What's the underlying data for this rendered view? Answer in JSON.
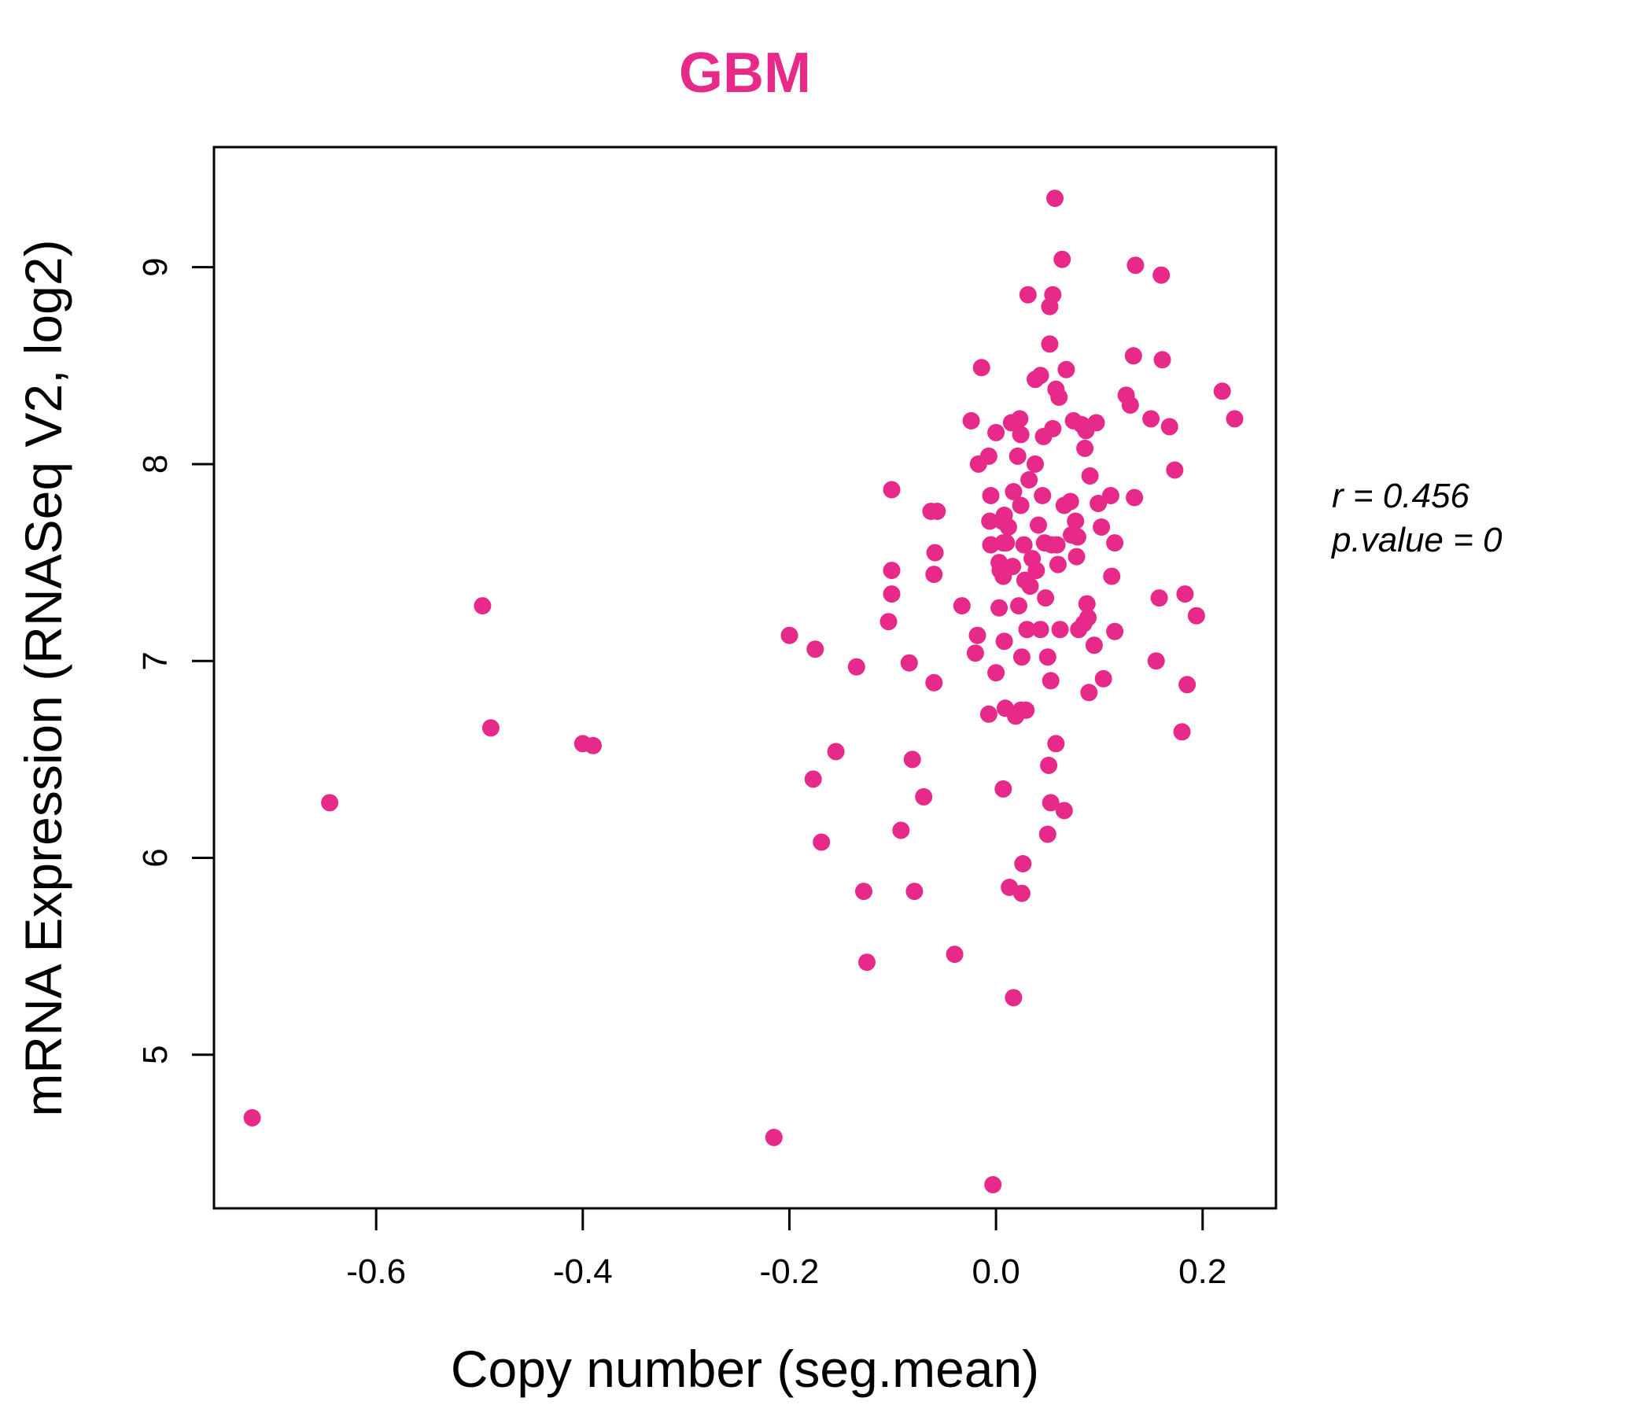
{
  "chart_data": {
    "type": "scatter",
    "title": "GBM",
    "xlabel": "Copy number (seg.mean)",
    "ylabel": "mRNA Expression (RNASeq V2, log2)",
    "xlim": [
      -0.757,
      0.271
    ],
    "ylim": [
      4.22,
      9.61
    ],
    "xticks": [
      -0.6,
      -0.4,
      -0.2,
      0.0,
      0.2
    ],
    "xtick_labels": [
      "-0.6",
      "-0.4",
      "-0.2",
      "0.0",
      "0.2"
    ],
    "yticks": [
      5,
      6,
      7,
      8,
      9
    ],
    "ytick_labels": [
      "5",
      "6",
      "7",
      "8",
      "9"
    ],
    "grid": false,
    "annotations": [
      "r = 0.456",
      "p.value = 0"
    ],
    "colors": {
      "points": "#E7298A",
      "title": "#E7298A"
    },
    "series": [
      {
        "points": [
          [
            -0.72,
            4.68
          ],
          [
            -0.645,
            6.28
          ],
          [
            -0.497,
            7.28
          ],
          [
            -0.489,
            6.66
          ],
          [
            -0.4,
            6.58
          ],
          [
            -0.39,
            6.57
          ],
          [
            -0.215,
            4.58
          ],
          [
            -0.2,
            7.13
          ],
          [
            -0.175,
            7.06
          ],
          [
            -0.177,
            6.4
          ],
          [
            -0.169,
            6.08
          ],
          [
            -0.155,
            6.54
          ],
          [
            -0.135,
            6.97
          ],
          [
            -0.128,
            5.83
          ],
          [
            -0.125,
            5.47
          ],
          [
            -0.104,
            7.2
          ],
          [
            -0.101,
            7.87
          ],
          [
            -0.101,
            7.46
          ],
          [
            -0.101,
            7.34
          ],
          [
            -0.084,
            6.99
          ],
          [
            -0.081,
            6.5
          ],
          [
            -0.079,
            5.83
          ],
          [
            -0.07,
            6.31
          ],
          [
            -0.092,
            6.14
          ],
          [
            -0.063,
            7.76
          ],
          [
            -0.057,
            7.76
          ],
          [
            -0.059,
            7.55
          ],
          [
            -0.06,
            7.44
          ],
          [
            -0.06,
            6.89
          ],
          [
            -0.04,
            5.51
          ],
          [
            -0.033,
            7.28
          ],
          [
            -0.024,
            8.22
          ],
          [
            -0.02,
            7.04
          ],
          [
            -0.018,
            7.13
          ],
          [
            -0.017,
            8.0
          ],
          [
            -0.014,
            8.49
          ],
          [
            -0.007,
            8.04
          ],
          [
            -0.006,
            7.71
          ],
          [
            -0.005,
            7.84
          ],
          [
            -0.005,
            7.59
          ],
          [
            -0.007,
            6.73
          ],
          [
            -0.003,
            4.34
          ],
          [
            0.0,
            8.16
          ],
          [
            0.0,
            6.94
          ],
          [
            0.003,
            7.5
          ],
          [
            0.003,
            7.27
          ],
          [
            0.004,
            7.46
          ],
          [
            0.006,
            7.71
          ],
          [
            0.007,
            7.6
          ],
          [
            0.007,
            7.43
          ],
          [
            0.007,
            6.35
          ],
          [
            0.008,
            7.74
          ],
          [
            0.008,
            7.1
          ],
          [
            0.009,
            6.76
          ],
          [
            0.01,
            7.6
          ],
          [
            0.012,
            7.68
          ],
          [
            0.013,
            5.85
          ],
          [
            0.015,
            8.21
          ],
          [
            0.016,
            7.48
          ],
          [
            0.017,
            7.86
          ],
          [
            0.017,
            5.29
          ],
          [
            0.019,
            6.72
          ],
          [
            0.021,
            8.04
          ],
          [
            0.022,
            7.28
          ],
          [
            0.023,
            8.23
          ],
          [
            0.024,
            8.15
          ],
          [
            0.024,
            7.79
          ],
          [
            0.024,
            6.75
          ],
          [
            0.025,
            7.02
          ],
          [
            0.025,
            5.82
          ],
          [
            0.026,
            5.97
          ],
          [
            0.027,
            7.59
          ],
          [
            0.028,
            7.41
          ],
          [
            0.029,
            6.75
          ],
          [
            0.03,
            7.16
          ],
          [
            0.031,
            8.86
          ],
          [
            0.032,
            7.92
          ],
          [
            0.033,
            7.38
          ],
          [
            0.035,
            7.52
          ],
          [
            0.038,
            8.0
          ],
          [
            0.038,
            8.43
          ],
          [
            0.039,
            7.46
          ],
          [
            0.041,
            7.69
          ],
          [
            0.043,
            8.45
          ],
          [
            0.043,
            7.16
          ],
          [
            0.045,
            7.84
          ],
          [
            0.046,
            8.14
          ],
          [
            0.047,
            7.6
          ],
          [
            0.048,
            7.32
          ],
          [
            0.05,
            7.02
          ],
          [
            0.05,
            6.12
          ],
          [
            0.051,
            6.47
          ],
          [
            0.052,
            8.8
          ],
          [
            0.052,
            8.61
          ],
          [
            0.053,
            6.9
          ],
          [
            0.053,
            6.28
          ],
          [
            0.054,
            7.59
          ],
          [
            0.055,
            8.86
          ],
          [
            0.055,
            8.18
          ],
          [
            0.057,
            9.35
          ],
          [
            0.058,
            8.38
          ],
          [
            0.058,
            6.58
          ],
          [
            0.059,
            7.59
          ],
          [
            0.06,
            7.49
          ],
          [
            0.061,
            8.34
          ],
          [
            0.062,
            7.16
          ],
          [
            0.064,
            9.04
          ],
          [
            0.066,
            7.79
          ],
          [
            0.066,
            6.24
          ],
          [
            0.068,
            8.48
          ],
          [
            0.072,
            7.81
          ],
          [
            0.073,
            7.64
          ],
          [
            0.075,
            8.22
          ],
          [
            0.077,
            7.71
          ],
          [
            0.078,
            7.53
          ],
          [
            0.079,
            7.63
          ],
          [
            0.08,
            7.16
          ],
          [
            0.083,
            8.2
          ],
          [
            0.085,
            7.19
          ],
          [
            0.086,
            8.08
          ],
          [
            0.087,
            8.17
          ],
          [
            0.088,
            7.29
          ],
          [
            0.089,
            7.22
          ],
          [
            0.09,
            6.84
          ],
          [
            0.091,
            7.94
          ],
          [
            0.095,
            7.08
          ],
          [
            0.097,
            8.21
          ],
          [
            0.099,
            7.8
          ],
          [
            0.102,
            7.68
          ],
          [
            0.104,
            6.91
          ],
          [
            0.111,
            7.84
          ],
          [
            0.112,
            7.43
          ],
          [
            0.115,
            7.6
          ],
          [
            0.115,
            7.15
          ],
          [
            0.126,
            8.35
          ],
          [
            0.13,
            8.3
          ],
          [
            0.133,
            8.55
          ],
          [
            0.134,
            7.83
          ],
          [
            0.135,
            9.01
          ],
          [
            0.15,
            8.23
          ],
          [
            0.155,
            7.0
          ],
          [
            0.158,
            7.32
          ],
          [
            0.16,
            8.96
          ],
          [
            0.161,
            8.53
          ],
          [
            0.168,
            8.19
          ],
          [
            0.173,
            7.97
          ],
          [
            0.18,
            6.64
          ],
          [
            0.183,
            7.34
          ],
          [
            0.185,
            6.88
          ],
          [
            0.194,
            7.23
          ],
          [
            0.219,
            8.37
          ],
          [
            0.231,
            8.23
          ]
        ]
      }
    ]
  }
}
